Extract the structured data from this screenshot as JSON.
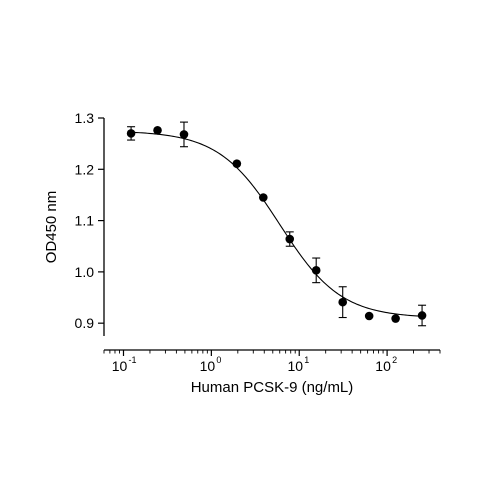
{
  "chart_data": {
    "type": "scatter",
    "xlabel": "Human PCSK-9 (ng/mL)",
    "ylabel": "OD450 nm",
    "x_scale": "log",
    "xlim": [
      0.06,
      400
    ],
    "ylim": [
      0.875,
      1.3
    ],
    "x_ticks": [
      {
        "value": 0.1,
        "base": "10",
        "exp": "-1"
      },
      {
        "value": 1,
        "base": "10",
        "exp": "0"
      },
      {
        "value": 10,
        "base": "10",
        "exp": "1"
      },
      {
        "value": 100,
        "base": "10",
        "exp": "2"
      }
    ],
    "y_ticks": [
      {
        "value": 0.9,
        "label": "0.9"
      },
      {
        "value": 1.0,
        "label": "1.0"
      },
      {
        "value": 1.1,
        "label": "1.1"
      },
      {
        "value": 1.2,
        "label": "1.2"
      },
      {
        "value": 1.3,
        "label": "1.3"
      }
    ],
    "grid": false,
    "legend": "none",
    "points": [
      {
        "x": 0.122,
        "y": 1.27,
        "err": 0.013
      },
      {
        "x": 0.244,
        "y": 1.276,
        "err": 0.0
      },
      {
        "x": 0.488,
        "y": 1.268,
        "err": 0.024
      },
      {
        "x": 1.95,
        "y": 1.211,
        "err": 0.0
      },
      {
        "x": 3.9,
        "y": 1.145,
        "err": 0.0
      },
      {
        "x": 7.8,
        "y": 1.064,
        "err": 0.014
      },
      {
        "x": 15.6,
        "y": 1.003,
        "err": 0.024
      },
      {
        "x": 31.25,
        "y": 0.941,
        "err": 0.03
      },
      {
        "x": 62.5,
        "y": 0.914,
        "err": 0.0
      },
      {
        "x": 125,
        "y": 0.909,
        "err": 0.0
      },
      {
        "x": 250,
        "y": 0.915,
        "err": 0.02
      }
    ],
    "fit": {
      "model": "4PL",
      "top": 1.275,
      "bottom": 0.91,
      "ec50": 6.0,
      "hill": 1.25
    },
    "colors": {
      "marker": "#000000",
      "line": "#000000",
      "background": "#ffffff"
    }
  }
}
